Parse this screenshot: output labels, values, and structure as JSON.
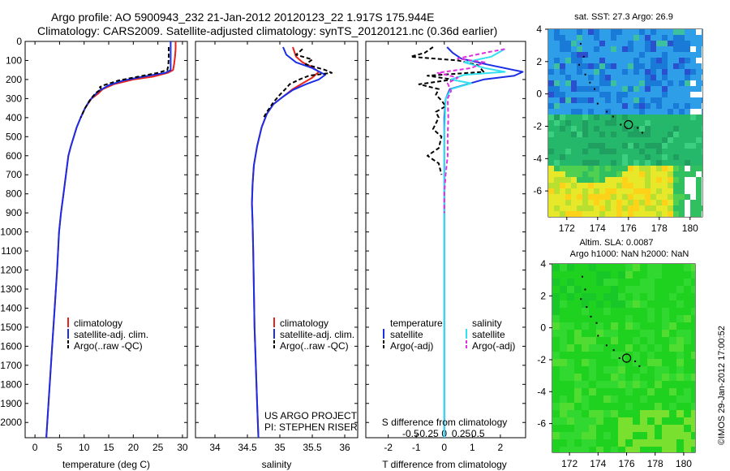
{
  "header": {
    "line1": "Argo profile: AO 5900943_232 21-Jan-2012 20120123_22 1.917S 175.944E",
    "line2": "Climatology: CARS2009. Satellite-adjusted climatology: synTS_20120121.nc (0.36d earlier)"
  },
  "credit": "US ARGO PROJECT\nPI: STEPHEN RISER",
  "watermark": "©IMOS 29-Jan-2012 17:00:52",
  "colors": {
    "climatology": "#e8231c",
    "satellite": "#1a2ee6",
    "argo": "#000000",
    "sal_satellite": "#33e0f0",
    "sal_argo": "#e030e0",
    "map_green": "#1fd21f"
  },
  "chart_data": [
    {
      "id": "temperature",
      "type": "line",
      "xlabel": "temperature (deg C)",
      "ylabel": "",
      "xlim": [
        -2,
        31
      ],
      "ylim": [
        2080,
        0
      ],
      "xticks": [
        0,
        5,
        10,
        15,
        20,
        25,
        30
      ],
      "yticks": [
        0,
        100,
        200,
        300,
        400,
        500,
        600,
        700,
        800,
        900,
        1000,
        1100,
        1200,
        1300,
        1400,
        1500,
        1600,
        1700,
        1800,
        1900,
        2000
      ],
      "legend": [
        "climatology",
        "satellite-adj. clim.",
        "Argo(..raw -QC)"
      ],
      "series": [
        {
          "name": "climatology",
          "style": "red",
          "points": [
            [
              28.6,
              0
            ],
            [
              28.6,
              40
            ],
            [
              28.5,
              80
            ],
            [
              28.3,
              120
            ],
            [
              28.1,
              150
            ],
            [
              27,
              165
            ],
            [
              24,
              185
            ],
            [
              20,
              200
            ],
            [
              16,
              225
            ],
            [
              13.8,
              250
            ],
            [
              12.8,
              275
            ],
            [
              11.5,
              300
            ],
            [
              10.2,
              350
            ],
            [
              9.3,
              400
            ],
            [
              8.5,
              450
            ],
            [
              7.9,
              500
            ],
            [
              7.3,
              550
            ],
            [
              6.8,
              600
            ],
            [
              6.3,
              700
            ],
            [
              5.8,
              800
            ],
            [
              5.3,
              900
            ],
            [
              4.9,
              1000
            ],
            [
              4.5,
              1200
            ],
            [
              4,
              1400
            ],
            [
              3.5,
              1600
            ],
            [
              3,
              1800
            ],
            [
              2.5,
              2000
            ],
            [
              2.3,
              2080
            ]
          ]
        },
        {
          "name": "satellite-adj. clim.",
          "style": "blue",
          "points": [
            [
              27.6,
              0
            ],
            [
              27.6,
              40
            ],
            [
              27.6,
              80
            ],
            [
              27.6,
              120
            ],
            [
              27.6,
              150
            ],
            [
              26.5,
              165
            ],
            [
              22,
              185
            ],
            [
              18,
              205
            ],
            [
              15,
              230
            ],
            [
              13,
              260
            ],
            [
              12,
              285
            ],
            [
              11.1,
              310
            ],
            [
              10.2,
              350
            ],
            [
              9.3,
              400
            ],
            [
              8.5,
              450
            ],
            [
              7.9,
              500
            ],
            [
              7.3,
              550
            ],
            [
              6.8,
              600
            ],
            [
              6.3,
              700
            ],
            [
              5.8,
              800
            ],
            [
              5.3,
              900
            ],
            [
              4.9,
              1000
            ],
            [
              4.5,
              1200
            ],
            [
              4,
              1400
            ],
            [
              3.5,
              1600
            ],
            [
              3,
              1800
            ],
            [
              2.5,
              2000
            ],
            [
              2.3,
              2080
            ]
          ]
        },
        {
          "name": "Argo(..raw -QC)",
          "style": "black",
          "points": [
            [
              27.2,
              30
            ],
            [
              27.2,
              60
            ],
            [
              27.2,
              90
            ],
            [
              27.1,
              130
            ],
            [
              26.9,
              150
            ],
            [
              25,
              165
            ],
            [
              21,
              185
            ],
            [
              17,
              205
            ],
            [
              14,
              230
            ],
            [
              13.2,
              240
            ],
            [
              13.5,
              250
            ],
            [
              12.4,
              270
            ],
            [
              11.4,
              300
            ],
            [
              10.2,
              350
            ],
            [
              9.3,
              400
            ]
          ]
        }
      ]
    },
    {
      "id": "salinity",
      "type": "line",
      "xlabel": "salinity",
      "ylabel": "",
      "xlim": [
        33.7,
        36.2
      ],
      "ylim": [
        2080,
        0
      ],
      "xticks": [
        34,
        34.5,
        35,
        35.5,
        36
      ],
      "yticks": [
        0,
        100,
        200,
        300,
        400,
        500,
        600,
        700,
        800,
        900,
        1000,
        1100,
        1200,
        1300,
        1400,
        1500,
        1600,
        1700,
        1800,
        1900,
        2000
      ],
      "legend": [
        "climatology",
        "satellite-adj. clim.",
        "Argo(..raw -QC)"
      ],
      "series": [
        {
          "name": "climatology",
          "style": "red",
          "points": [
            [
              35.2,
              30
            ],
            [
              35.25,
              80
            ],
            [
              35.35,
              110
            ],
            [
              35.5,
              135
            ],
            [
              35.6,
              160
            ],
            [
              35.5,
              190
            ],
            [
              35.35,
              220
            ],
            [
              35.2,
              250
            ],
            [
              35.05,
              290
            ],
            [
              34.9,
              330
            ],
            [
              34.8,
              380
            ],
            [
              34.72,
              450
            ],
            [
              34.65,
              550
            ],
            [
              34.6,
              650
            ],
            [
              34.58,
              750
            ],
            [
              34.57,
              850
            ],
            [
              34.58,
              950
            ],
            [
              34.59,
              1100
            ],
            [
              34.6,
              1300
            ],
            [
              34.61,
              1500
            ],
            [
              34.63,
              1700
            ],
            [
              34.65,
              1900
            ],
            [
              34.67,
              2080
            ]
          ]
        },
        {
          "name": "satellite-adj. clim.",
          "style": "blue",
          "points": [
            [
              35.05,
              30
            ],
            [
              35.1,
              70
            ],
            [
              35.25,
              110
            ],
            [
              35.5,
              140
            ],
            [
              35.7,
              175
            ],
            [
              35.6,
              200
            ],
            [
              35.4,
              225
            ],
            [
              35.2,
              255
            ],
            [
              35.05,
              290
            ],
            [
              34.9,
              330
            ],
            [
              34.8,
              380
            ],
            [
              34.72,
              450
            ],
            [
              34.65,
              550
            ],
            [
              34.6,
              650
            ],
            [
              34.58,
              750
            ],
            [
              34.57,
              850
            ],
            [
              34.58,
              950
            ],
            [
              34.59,
              1100
            ],
            [
              34.6,
              1300
            ],
            [
              34.61,
              1500
            ],
            [
              34.63,
              1700
            ],
            [
              34.65,
              1900
            ],
            [
              34.67,
              2080
            ]
          ]
        },
        {
          "name": "Argo(..raw -QC)",
          "style": "black",
          "points": [
            [
              35.35,
              40
            ],
            [
              35.25,
              70
            ],
            [
              35.5,
              95
            ],
            [
              35.4,
              120
            ],
            [
              35.55,
              135
            ],
            [
              35.7,
              150
            ],
            [
              35.8,
              165
            ],
            [
              35.45,
              180
            ],
            [
              35.3,
              200
            ],
            [
              35.15,
              225
            ],
            [
              35.1,
              245
            ],
            [
              35,
              280
            ],
            [
              34.9,
              320
            ],
            [
              34.8,
              370
            ],
            [
              34.75,
              400
            ]
          ]
        }
      ]
    },
    {
      "id": "difference",
      "type": "line",
      "xlabel": "T difference from climatology",
      "xlabel_top": "S difference from climatology",
      "xlim": [
        -2.8,
        2.9
      ],
      "ylim": [
        2080,
        0
      ],
      "xticks": [
        -2,
        -1,
        0,
        1,
        2
      ],
      "s_ticks": [
        -0.5,
        -0.25,
        0,
        0.25,
        0.5
      ],
      "legend_temperature": [
        "temperature",
        "satellite",
        "Argo(-adj)"
      ],
      "legend_salinity": [
        "salinity",
        "satellite",
        "Argo(-adj)"
      ],
      "series": [
        {
          "name": "temperature satellite",
          "style": "blue",
          "points": [
            [
              0.1,
              30
            ],
            [
              0.3,
              60
            ],
            [
              0.6,
              90
            ],
            [
              1.5,
              120
            ],
            [
              2.8,
              160
            ],
            [
              2.5,
              180
            ],
            [
              1.4,
              200
            ],
            [
              0.8,
              225
            ],
            [
              0.2,
              250
            ],
            [
              0.05,
              300
            ],
            [
              0,
              400
            ],
            [
              0,
              600
            ],
            [
              0,
              1000
            ],
            [
              0,
              1500
            ],
            [
              0,
              2080
            ]
          ]
        },
        {
          "name": "temperature Argo(-adj)",
          "style": "black-dash",
          "points": [
            [
              -0.4,
              30
            ],
            [
              -0.7,
              60
            ],
            [
              -1.2,
              80
            ],
            [
              0.5,
              100
            ],
            [
              1.2,
              125
            ],
            [
              1.4,
              160
            ],
            [
              -0.6,
              180
            ],
            [
              0.3,
              200
            ],
            [
              -0.9,
              225
            ],
            [
              -0.2,
              250
            ],
            [
              -0.3,
              280
            ],
            [
              -0.1,
              310
            ],
            [
              0.05,
              340
            ],
            [
              -0.3,
              370
            ],
            [
              -0.2,
              400
            ],
            [
              -0.4,
              460
            ],
            [
              -0.1,
              500
            ],
            [
              -0.2,
              560
            ],
            [
              -0.6,
              600
            ],
            [
              -0.2,
              640
            ],
            [
              -0.1,
              700
            ]
          ]
        },
        {
          "name": "salinity satellite",
          "style": "cyan",
          "points": [
            [
              0.9,
              40
            ],
            [
              0.7,
              80
            ],
            [
              0.3,
              110
            ],
            [
              0.6,
              140
            ],
            [
              0.9,
              160
            ],
            [
              0.3,
              175
            ],
            [
              0.1,
              200
            ],
            [
              0.4,
              220
            ],
            [
              0.1,
              250
            ],
            [
              0.02,
              300
            ],
            [
              0,
              500
            ],
            [
              0,
              800
            ],
            [
              0,
              1200
            ],
            [
              0,
              2080
            ]
          ]
        },
        {
          "name": "salinity Argo(-adj)",
          "style": "magenta-dash",
          "points": [
            [
              0.9,
              40
            ],
            [
              0.6,
              60
            ],
            [
              0.2,
              90
            ],
            [
              0.6,
              110
            ],
            [
              0.4,
              140
            ],
            [
              -0.1,
              165
            ],
            [
              0.2,
              190
            ],
            [
              0.05,
              220
            ],
            [
              0.1,
              260
            ],
            [
              0.05,
              300
            ],
            [
              0.06,
              400
            ],
            [
              0.05,
              500
            ],
            [
              0.05,
              600
            ],
            [
              0.02,
              700
            ],
            [
              0,
              800
            ],
            [
              0,
              900
            ]
          ]
        }
      ]
    },
    {
      "id": "sst-map",
      "type": "heatmap",
      "title": "sat. SST: 27.3 Argo: 26.9",
      "xlim": [
        170.8,
        180.8
      ],
      "ylim": [
        -7.6,
        4
      ],
      "xticks": [
        172,
        174,
        176,
        178,
        180
      ],
      "yticks": [
        4,
        2,
        0,
        -2,
        -4,
        -6
      ],
      "argo_position": [
        176,
        -1.9
      ],
      "island_points": [
        [
          172.9,
          3.1
        ],
        [
          173.1,
          2.3
        ],
        [
          172.8,
          1.8
        ],
        [
          173.2,
          1.2
        ],
        [
          173.5,
          0.7
        ],
        [
          173.8,
          0.3
        ],
        [
          174,
          -0.6
        ],
        [
          174.6,
          -1.1
        ],
        [
          175,
          -1.4
        ],
        [
          175.5,
          -1.9
        ],
        [
          176.6,
          -2.1
        ],
        [
          176.9,
          -2.4
        ]
      ]
    },
    {
      "id": "sla-map",
      "type": "heatmap",
      "title": "Altim. SLA: 0.0087",
      "subtitle": "Argo h1000: NaN h2000: NaN",
      "xlim": [
        170.8,
        180.8
      ],
      "ylim": [
        -7.8,
        4
      ],
      "xticks": [
        172,
        174,
        176,
        178,
        180
      ],
      "yticks": [
        4,
        2,
        0,
        -2,
        -4,
        -6
      ],
      "argo_position": [
        176,
        -1.9
      ],
      "island_points": [
        [
          172.9,
          3.2
        ],
        [
          173.1,
          2.4
        ],
        [
          172.8,
          1.8
        ],
        [
          173.2,
          1.3
        ],
        [
          173.5,
          0.7
        ],
        [
          173.9,
          0.3
        ],
        [
          174,
          -0.5
        ],
        [
          174.6,
          -1.1
        ],
        [
          175.1,
          -1.4
        ],
        [
          175.5,
          -1.9
        ],
        [
          176.6,
          -2.1
        ],
        [
          176.9,
          -2.4
        ]
      ]
    }
  ]
}
